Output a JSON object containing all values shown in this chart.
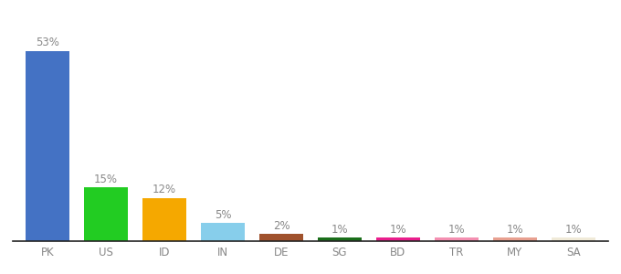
{
  "categories": [
    "PK",
    "US",
    "ID",
    "IN",
    "DE",
    "SG",
    "BD",
    "TR",
    "MY",
    "SA"
  ],
  "values": [
    53,
    15,
    12,
    5,
    2,
    1,
    1,
    1,
    1,
    1
  ],
  "bar_colors": [
    "#4472c4",
    "#22cc22",
    "#f5a800",
    "#87ceeb",
    "#a0522d",
    "#1a6e1a",
    "#e91e8c",
    "#f48fb1",
    "#e8a090",
    "#f0ead8"
  ],
  "labels": [
    "53%",
    "15%",
    "12%",
    "5%",
    "2%",
    "1%",
    "1%",
    "1%",
    "1%",
    "1%"
  ],
  "ylim": [
    0,
    58
  ],
  "background_color": "#ffffff",
  "label_fontsize": 8.5,
  "tick_fontsize": 8.5,
  "bar_width": 0.75,
  "label_color": "#888888",
  "tick_color": "#888888",
  "bottom_spine_color": "#222222"
}
